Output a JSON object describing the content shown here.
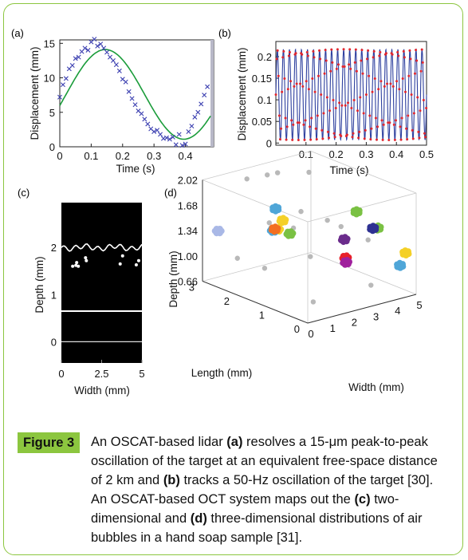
{
  "panels": {
    "a": {
      "label": "(a)",
      "chart_data": {
        "type": "scatter",
        "xlabel": "Time (s)",
        "ylabel": "Displacement (mm)",
        "xlim": [
          0,
          0.49
        ],
        "ylim": [
          0,
          15.5
        ],
        "xticks": [
          "0",
          "0.1",
          "0.2",
          "0.3",
          "0.4"
        ],
        "yticks": [
          "0",
          "5",
          "10",
          "15"
        ],
        "fit": {
          "amplitude": 6.5,
          "offset": 7.6,
          "frequency": 2.0,
          "phase": 0.02
        },
        "series": [
          {
            "x": [
              0.0,
              0.01,
              0.02,
              0.03,
              0.04,
              0.05,
              0.06,
              0.07,
              0.08,
              0.09,
              0.1,
              0.11,
              0.12,
              0.13,
              0.14,
              0.15,
              0.16,
              0.17,
              0.18,
              0.19,
              0.2,
              0.21,
              0.22,
              0.23,
              0.24,
              0.25,
              0.26,
              0.27,
              0.28,
              0.29,
              0.3,
              0.31,
              0.32,
              0.33,
              0.34,
              0.35,
              0.36,
              0.37,
              0.38,
              0.39,
              0.4,
              0.41,
              0.42,
              0.43,
              0.44,
              0.45,
              0.46,
              0.47
            ],
            "y": [
              7.2,
              9.0,
              9.9,
              11.3,
              11.8,
              12.8,
              13.0,
              13.8,
              14.3,
              14.0,
              15.2,
              15.6,
              14.6,
              14.9,
              14.3,
              13.7,
              13.0,
              12.5,
              11.9,
              11.0,
              9.8,
              9.4,
              8.0,
              7.0,
              6.1,
              5.2,
              4.8,
              4.0,
              3.3,
              2.6,
              2.2,
              2.4,
              1.8,
              1.2,
              1.3,
              1.1,
              1.4,
              0.3,
              1.8,
              0.2,
              0.4,
              2.2,
              3.0,
              4.3,
              5.0,
              6.2,
              7.5,
              8.7
            ]
          }
        ]
      }
    },
    "b": {
      "label": "(b)",
      "chart_data": {
        "type": "line",
        "xlabel": "Time (s)",
        "ylabel": "Displacement (mm)",
        "xlim": [
          0,
          0.5
        ],
        "ylim": [
          -0.005,
          0.235
        ],
        "xticks": [
          "0.1",
          "0.2",
          "0.3",
          "0.4",
          "0.5"
        ],
        "yticks": [
          "0",
          "0.05",
          "0.1",
          "0.15",
          "0.2"
        ],
        "oscillation_hz": 50,
        "amplitude": 0.105,
        "offset": 0.112
      }
    },
    "c": {
      "label": "(c)",
      "chart_data": {
        "type": "heatmap",
        "xlabel": "Width (mm)",
        "ylabel": "Depth (mm)",
        "xlim": [
          0,
          5
        ],
        "ylim": [
          -0.45,
          2.95
        ],
        "xticks": [
          "0",
          "2.5",
          "5"
        ],
        "yticks": [
          "0",
          "1",
          "2"
        ],
        "surface_depth_mm": [
          2.0,
          0.65,
          0.0
        ],
        "bubbles": [
          [
            0.7,
            1.6
          ],
          [
            0.9,
            1.62
          ],
          [
            1.05,
            1.6
          ],
          [
            1.5,
            1.78
          ],
          [
            1.55,
            1.72
          ],
          [
            3.8,
            1.82
          ],
          [
            3.65,
            1.65
          ],
          [
            4.65,
            1.63
          ],
          [
            4.8,
            1.72
          ],
          [
            0.95,
            1.68
          ]
        ]
      }
    },
    "d": {
      "label": "(d)",
      "chart_data": {
        "type": "scatter",
        "xlabel": "Width (mm)",
        "ylabel": "Length (mm)",
        "zlabel": "Depth (mm)",
        "xticks": [
          "0",
          "1",
          "2",
          "3",
          "4",
          "5"
        ],
        "yticks": [
          "0",
          "1",
          "2",
          "3"
        ],
        "zticks": [
          "0.66",
          "1.00",
          "1.34",
          "1.68",
          "2.02"
        ],
        "clusters": [
          {
            "color": "#a9b8e6",
            "x": 0.4,
            "y": 2.8,
            "z": 1.34
          },
          {
            "color": "#f4d027",
            "x": 3.3,
            "y": 2.9,
            "z": 1.12
          },
          {
            "color": "#4fa6d8",
            "x": 3.1,
            "y": 2.9,
            "z": 1.12
          },
          {
            "color": "#7ac143",
            "x": 3.7,
            "y": 2.8,
            "z": 1.05
          },
          {
            "color": "#e8202a",
            "x": 3.2,
            "y": 0.9,
            "z": 1.12
          },
          {
            "color": "#a0209d",
            "x": 2.9,
            "y": 0.7,
            "z": 1.12
          },
          {
            "color": "#6b2c8c",
            "x": 3.3,
            "y": 1.0,
            "z": 1.34
          },
          {
            "color": "#f4d027",
            "x": 2.4,
            "y": 2.2,
            "z": 1.44
          },
          {
            "color": "#f36f21",
            "x": 2.2,
            "y": 2.3,
            "z": 1.32
          },
          {
            "color": "#7ac143",
            "x": 4.2,
            "y": 0.6,
            "z": 1.5
          },
          {
            "color": "#2e3192",
            "x": 4.3,
            "y": 0.8,
            "z": 1.45
          },
          {
            "color": "#7ac143",
            "x": 5.0,
            "y": 1.7,
            "z": 1.45
          },
          {
            "color": "#4fa6d8",
            "x": 2.4,
            "y": 2.4,
            "z": 1.56
          },
          {
            "color": "#4fa6d8",
            "x": 4.9,
            "y": 0.4,
            "z": 0.98
          },
          {
            "color": "#f4d027",
            "x": 5.0,
            "y": 0.3,
            "z": 1.16
          }
        ]
      }
    }
  },
  "caption": {
    "badge": "Figure 3",
    "segments": [
      {
        "t": "An OSCAT-based lidar ",
        "b": false
      },
      {
        "t": "(a)",
        "b": true
      },
      {
        "t": " resolves a 15-μm peak-to-peak oscillation of the target at an equivalent free-space distance of 2 km and ",
        "b": false
      },
      {
        "t": "(b)",
        "b": true
      },
      {
        "t": " tracks a 50-Hz oscillation of the target [30]. An OSCAT-based OCT system maps out the ",
        "b": false
      },
      {
        "t": "(c)",
        "b": true
      },
      {
        "t": " two-dimensional and ",
        "b": false
      },
      {
        "t": "(d)",
        "b": true
      },
      {
        "t": " three-dimensional distributions of air bubbles in a hand soap sample [31].",
        "b": false
      }
    ]
  }
}
